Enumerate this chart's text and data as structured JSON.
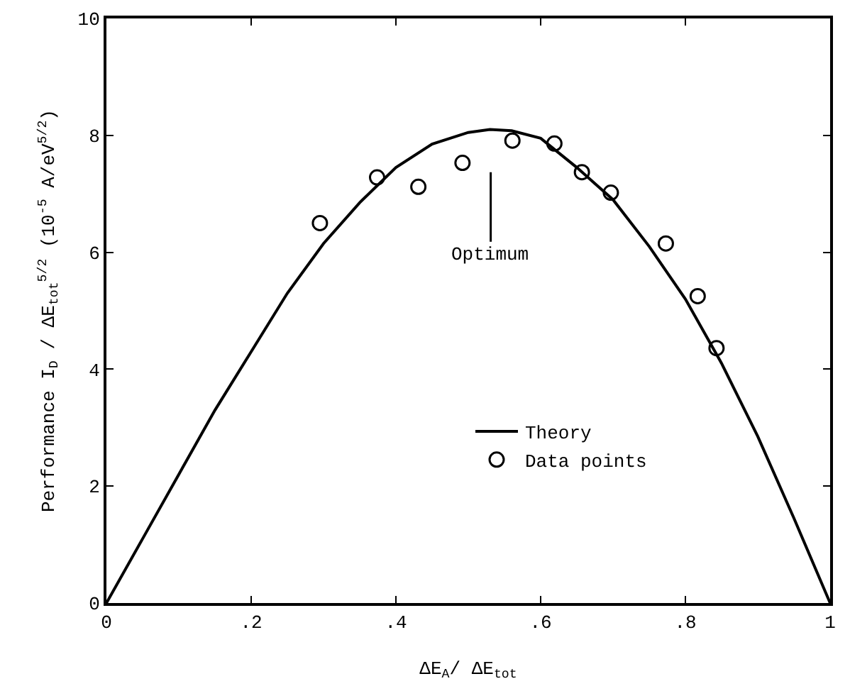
{
  "chart_data": {
    "type": "line",
    "xlabel": "ΔE$_{A}$/ ΔE$_{tot}$",
    "ylabel": "Performance I$_{D}$ / ΔE$_{tot}$$^{5/2}$ (10$^{-5}$ A/eV$^{5/2}$)",
    "xlim": [
      0,
      1
    ],
    "ylim": [
      0,
      10
    ],
    "xticks": [
      0,
      {
        "value": 0.2,
        "label": ".2"
      },
      {
        "value": 0.4,
        "label": ".4"
      },
      {
        "value": 0.6,
        "label": ".6"
      },
      {
        "value": 0.8,
        "label": ".8"
      },
      1
    ],
    "yticks": [
      0,
      2,
      4,
      6,
      8,
      10
    ],
    "legend": "bottom",
    "annotations": [
      "Optimum"
    ],
    "series": [
      {
        "name": "Theory",
        "marker": "none",
        "color": "#000000",
        "x": [
          0,
          0.05,
          0.1,
          0.15,
          0.2,
          0.25,
          0.3,
          0.35,
          0.4,
          0.45,
          0.5,
          0.53,
          0.56,
          0.6,
          0.65,
          0.7,
          0.75,
          0.8,
          0.85,
          0.9,
          0.95,
          1
        ],
        "values": [
          0,
          1.1,
          2.2,
          3.3,
          4.3,
          5.3,
          6.15,
          6.85,
          7.45,
          7.85,
          8.05,
          8.1,
          8.08,
          7.95,
          7.45,
          6.9,
          6.1,
          5.2,
          4.1,
          2.85,
          1.45,
          0
        ]
      },
      {
        "name": "Data points",
        "type": "scatter",
        "marker": "circle",
        "color": "#000000",
        "x": [
          0.295,
          0.374,
          0.431,
          0.492,
          0.561,
          0.619,
          0.657,
          0.697,
          0.773,
          0.817,
          0.843
        ],
        "values": [
          6.5,
          7.28,
          7.12,
          7.53,
          7.91,
          7.86,
          7.37,
          7.02,
          6.15,
          5.25,
          4.36
        ]
      }
    ]
  }
}
